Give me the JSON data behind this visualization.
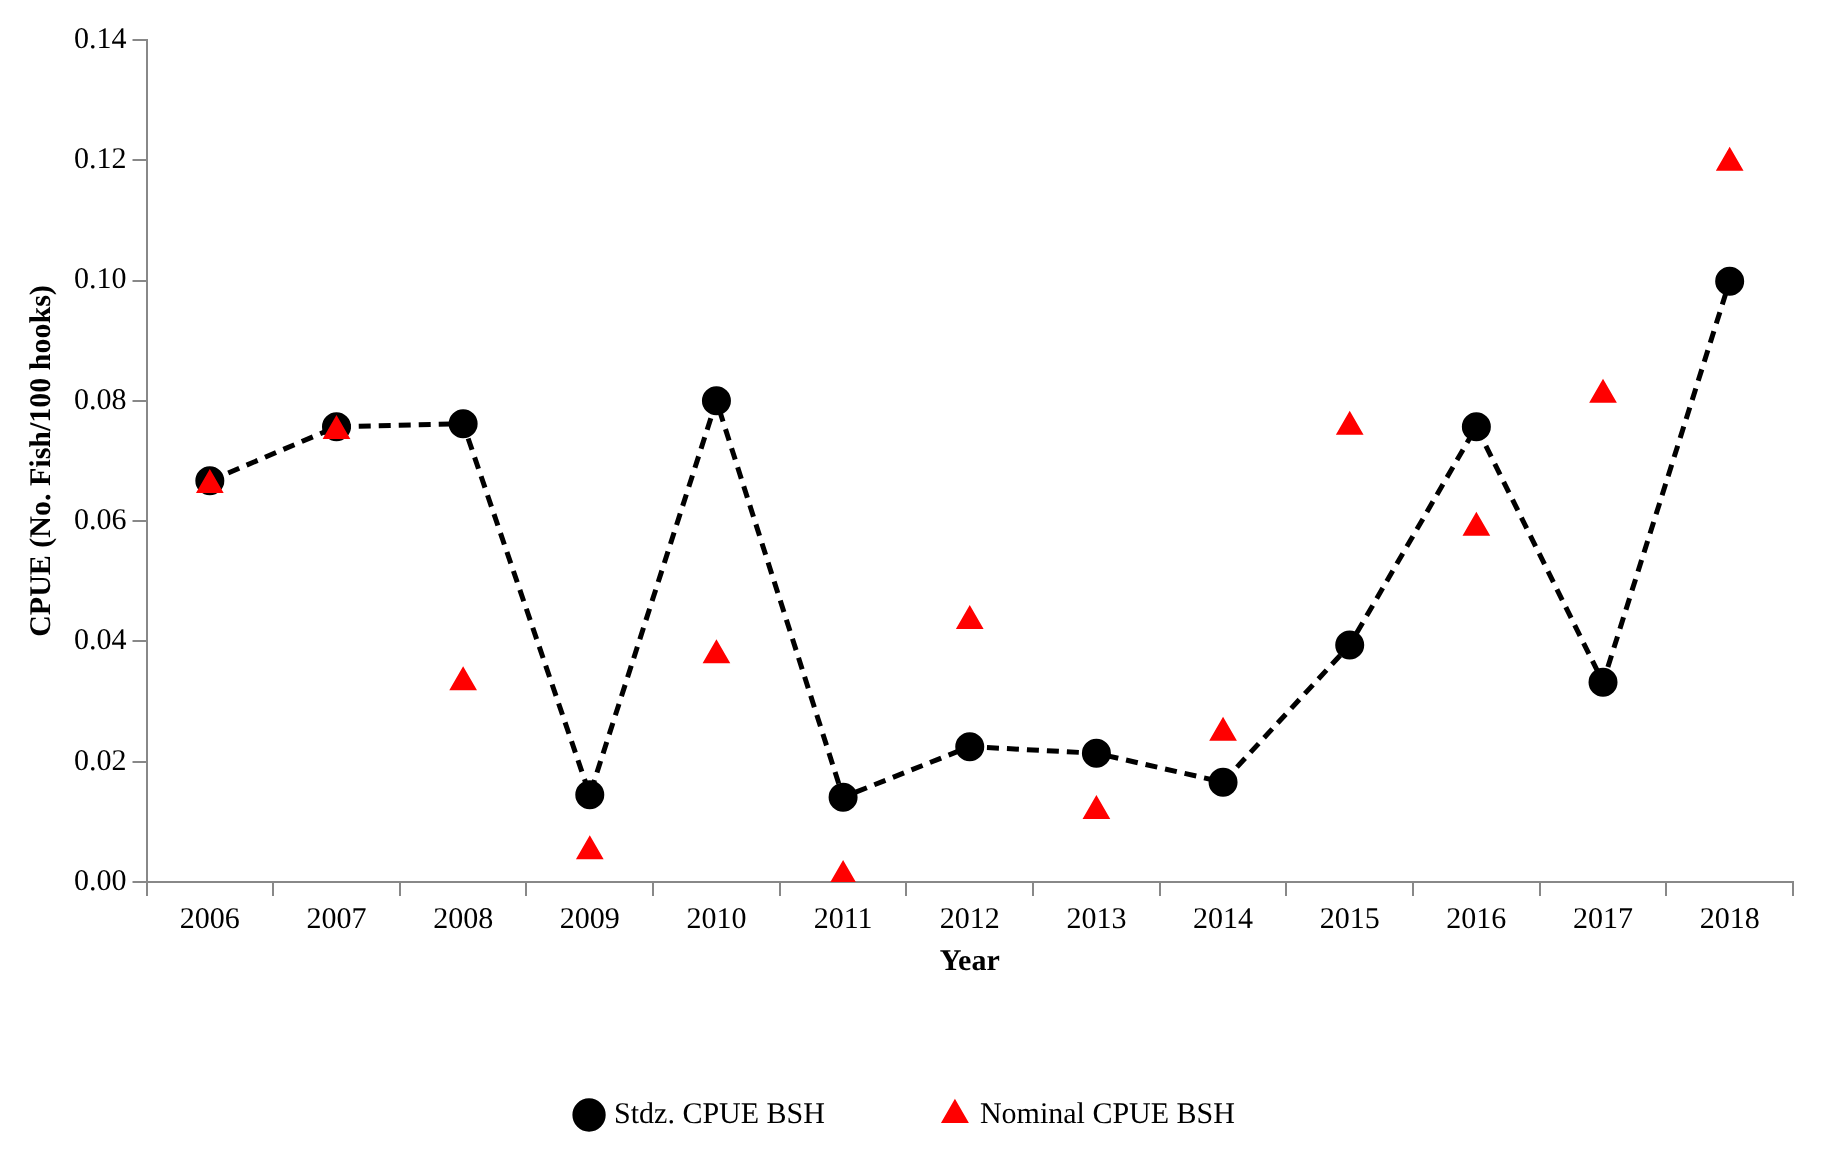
{
  "chart_data": {
    "type": "line",
    "xlabel": "Year",
    "ylabel": "CPUE (No. Fish/100 hooks)",
    "categories": [
      "2006",
      "2007",
      "2008",
      "2009",
      "2010",
      "2011",
      "2012",
      "2013",
      "2014",
      "2015",
      "2016",
      "2017",
      "2018"
    ],
    "series": [
      {
        "name": "Stdz. CPUE BSH",
        "type": "line",
        "color": "#000000",
        "marker": "circle",
        "line_style": "dashed",
        "values": [
          0.0667,
          0.0757,
          0.0762,
          0.0145,
          0.08,
          0.0141,
          0.0225,
          0.0214,
          0.0166,
          0.0394,
          0.0757,
          0.0332,
          0.0999
        ]
      },
      {
        "name": "Nominal CPUE BSH",
        "type": "scatter",
        "color": "#ff0000",
        "marker": "triangle",
        "values": [
          0.066,
          0.075,
          0.0332,
          0.0051,
          0.0377,
          0.001,
          0.0434,
          0.0118,
          0.0248,
          0.0757,
          0.0589,
          0.081,
          0.1196
        ]
      }
    ],
    "ylim": [
      0,
      0.14
    ],
    "yticks": [
      {
        "value": 0,
        "label": "0.00"
      },
      {
        "value": 0.02,
        "label": "0.02"
      },
      {
        "value": 0.04,
        "label": "0.04"
      },
      {
        "value": 0.06,
        "label": "0.06"
      },
      {
        "value": 0.08,
        "label": "0.08"
      },
      {
        "value": 0.1,
        "label": "0.10"
      },
      {
        "value": 0.12,
        "label": "0.12"
      },
      {
        "value": 0.14,
        "label": "0.14"
      }
    ],
    "grid": false,
    "legend": "bottom"
  }
}
